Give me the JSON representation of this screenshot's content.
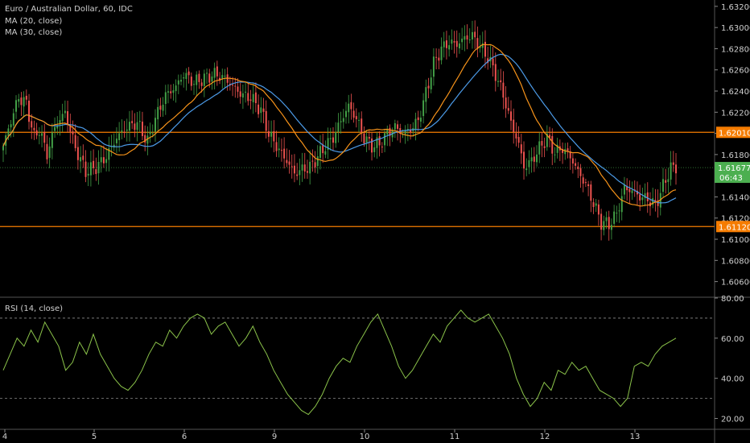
{
  "header": {
    "symbol_line": "Euro / Australian Dollar, 60, IDC",
    "ma20_label": "MA (20, close)",
    "ma30_label": "MA (30, close)"
  },
  "rsi_panel": {
    "label": "RSI (14, close)"
  },
  "price_tag": {
    "last": "1.61677",
    "countdown": "06:43"
  },
  "colors": {
    "background": "#000000",
    "up": "#43a047",
    "down": "#ef5350",
    "ma20": "#f7931a",
    "ma30": "#4c9be8",
    "hline": "#f57c00",
    "rsi": "#8bc34a",
    "last_price": "#4caf50"
  },
  "chart_data": [
    {
      "type": "candlestick",
      "title": "Euro / Australian Dollar, 60, IDC",
      "x_ticks": [
        "4",
        "5",
        "6",
        "9",
        "10",
        "11",
        "12",
        "13"
      ],
      "y_ticks": [
        "1.60600",
        "1.60800",
        "1.61000",
        "1.61200",
        "1.61400",
        "1.61600",
        "1.61800",
        "1.62000",
        "1.62200",
        "1.62400",
        "1.62600",
        "1.62800",
        "1.63000",
        "1.63200"
      ],
      "ylim": [
        1.6046,
        1.6326
      ],
      "horizontal_lines": [
        {
          "value": 1.6201,
          "label": "1.62010"
        },
        {
          "value": 1.6112,
          "label": "1.61120"
        }
      ],
      "last_price": 1.61677,
      "close_path": [
        [
          0,
          1.6188
        ],
        [
          3,
          1.6212
        ],
        [
          6,
          1.6234
        ],
        [
          9,
          1.6228
        ],
        [
          12,
          1.6196
        ],
        [
          14,
          1.6204
        ],
        [
          17,
          1.618
        ],
        [
          20,
          1.6206
        ],
        [
          24,
          1.622
        ],
        [
          28,
          1.6186
        ],
        [
          32,
          1.6164
        ],
        [
          36,
          1.6168
        ],
        [
          40,
          1.6178
        ],
        [
          44,
          1.6196
        ],
        [
          48,
          1.6206
        ],
        [
          52,
          1.621
        ],
        [
          56,
          1.6192
        ],
        [
          59,
          1.6214
        ],
        [
          63,
          1.6236
        ],
        [
          67,
          1.6244
        ],
        [
          70,
          1.6256
        ],
        [
          74,
          1.6248
        ],
        [
          78,
          1.6252
        ],
        [
          82,
          1.6256
        ],
        [
          86,
          1.6252
        ],
        [
          90,
          1.6242
        ],
        [
          93,
          1.6236
        ],
        [
          96,
          1.6234
        ],
        [
          100,
          1.6222
        ],
        [
          103,
          1.62
        ],
        [
          106,
          1.6188
        ],
        [
          110,
          1.6174
        ],
        [
          113,
          1.6162
        ],
        [
          116,
          1.6166
        ],
        [
          119,
          1.6168
        ],
        [
          122,
          1.6178
        ],
        [
          125,
          1.6188
        ],
        [
          128,
          1.6196
        ],
        [
          131,
          1.6212
        ],
        [
          134,
          1.6226
        ],
        [
          137,
          1.6214
        ],
        [
          140,
          1.6196
        ],
        [
          143,
          1.6188
        ],
        [
          146,
          1.619
        ],
        [
          149,
          1.62
        ],
        [
          152,
          1.6206
        ],
        [
          155,
          1.62
        ],
        [
          158,
          1.6204
        ],
        [
          161,
          1.6212
        ],
        [
          164,
          1.6238
        ],
        [
          167,
          1.6266
        ],
        [
          170,
          1.628
        ],
        [
          173,
          1.6286
        ],
        [
          176,
          1.6284
        ],
        [
          179,
          1.629
        ],
        [
          182,
          1.6292
        ],
        [
          185,
          1.6282
        ],
        [
          188,
          1.6272
        ],
        [
          191,
          1.6256
        ],
        [
          194,
          1.6236
        ],
        [
          197,
          1.621
        ],
        [
          200,
          1.619
        ],
        [
          202,
          1.6168
        ],
        [
          205,
          1.6174
        ],
        [
          208,
          1.6186
        ],
        [
          211,
          1.6196
        ],
        [
          214,
          1.6182
        ],
        [
          217,
          1.6186
        ],
        [
          220,
          1.6178
        ],
        [
          223,
          1.6164
        ],
        [
          226,
          1.6152
        ],
        [
          229,
          1.6134
        ],
        [
          232,
          1.6116
        ],
        [
          235,
          1.6114
        ],
        [
          238,
          1.6124
        ],
        [
          241,
          1.6148
        ],
        [
          244,
          1.6146
        ],
        [
          247,
          1.614
        ],
        [
          250,
          1.6138
        ],
        [
          253,
          1.6132
        ],
        [
          256,
          1.615
        ],
        [
          259,
          1.6168
        ],
        [
          261,
          1.6167
        ]
      ]
    },
    {
      "type": "line",
      "title": "RSI (14, close)",
      "ylim": [
        15,
        80
      ],
      "y_ticks": [
        "20.00",
        "40.00",
        "60.00",
        "80.00"
      ],
      "bands": [
        30,
        70
      ],
      "values": [
        44,
        52,
        60,
        56,
        64,
        58,
        68,
        62,
        56,
        44,
        48,
        58,
        52,
        62,
        52,
        46,
        40,
        36,
        34,
        38,
        44,
        52,
        58,
        56,
        64,
        60,
        66,
        70,
        72,
        70,
        62,
        66,
        68,
        62,
        56,
        60,
        66,
        58,
        52,
        44,
        38,
        32,
        28,
        24,
        22,
        26,
        32,
        40,
        46,
        50,
        48,
        56,
        62,
        68,
        72,
        64,
        56,
        46,
        40,
        44,
        50,
        56,
        62,
        58,
        66,
        70,
        74,
        70,
        68,
        70,
        72,
        66,
        60,
        52,
        40,
        32,
        26,
        30,
        38,
        34,
        44,
        42,
        48,
        44,
        46,
        40,
        34,
        32,
        30,
        26,
        30,
        46,
        48,
        46,
        52,
        56,
        58,
        60
      ]
    }
  ]
}
